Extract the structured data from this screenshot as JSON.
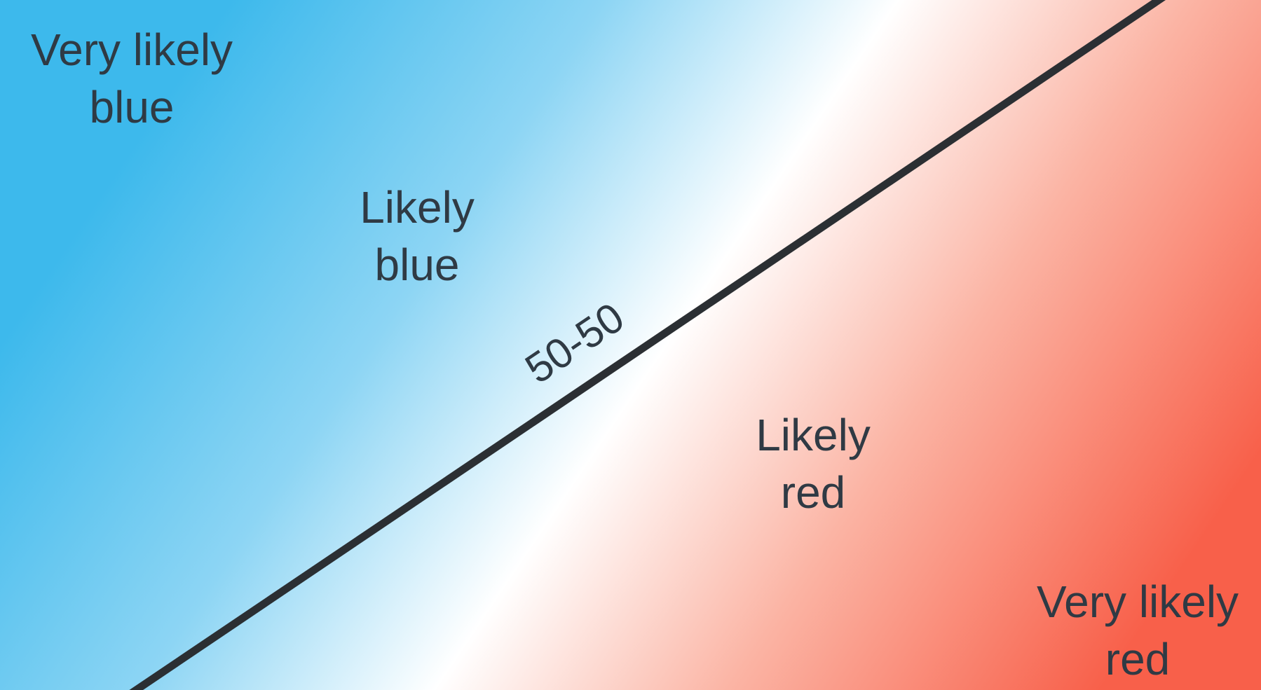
{
  "colors": {
    "blue_strong": "#3db9ec",
    "blue_mid": "#8dd5f4",
    "white": "#ffffff",
    "red_mid": "#fbb4a4",
    "red_strong": "#f8604a",
    "divider": "#2b2f33",
    "text": "#2f3a44"
  },
  "regions": {
    "very_likely_blue": {
      "line1": "Very likely",
      "line2": "blue"
    },
    "likely_blue": {
      "line1": "Likely",
      "line2": "blue"
    },
    "boundary": {
      "label": "50-50"
    },
    "likely_red": {
      "line1": "Likely",
      "line2": "red"
    },
    "very_likely_red": {
      "line1": "Very likely",
      "line2": "red"
    }
  }
}
